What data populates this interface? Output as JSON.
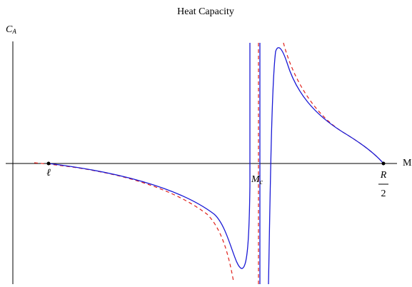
{
  "chart_data": {
    "type": "line",
    "title": "Heat Capacity",
    "x_label": "M",
    "y_label": {
      "main": "C",
      "sub": "A"
    },
    "annotations": {
      "ell": "ℓ",
      "mc": {
        "main": "M",
        "sub": "c"
      },
      "half_r": {
        "numerator": "R",
        "denominator": "2"
      }
    }
  }
}
